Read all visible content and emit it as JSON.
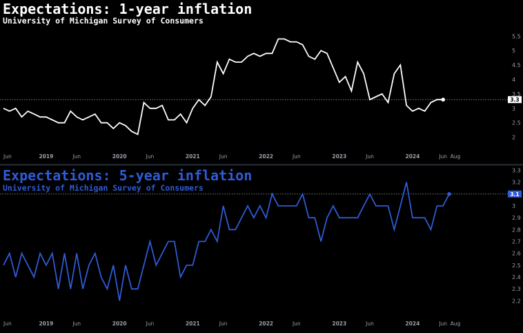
{
  "chart_data": [
    {
      "type": "line",
      "title": "Expectations: 1-year inflation",
      "subtitle": "University of Michigan Survey of Consumers",
      "color": "#ffffff",
      "ylim": [
        1.75,
        5.65
      ],
      "yticks": [
        "5.5",
        "5",
        "4.5",
        "4",
        "3.5",
        "3",
        "2.5",
        "2"
      ],
      "last_label": "3.3",
      "x_tick_labels": [
        "Jun",
        "2019",
        "Jun",
        "2020",
        "Jun",
        "2021",
        "Jun",
        "2022",
        "Jun",
        "2023",
        "Jun",
        "2024",
        "Jun",
        "Aug"
      ],
      "x_start": "2018-06",
      "values": [
        3.0,
        2.9,
        3.0,
        2.7,
        2.9,
        2.8,
        2.7,
        2.7,
        2.6,
        2.5,
        2.5,
        2.9,
        2.7,
        2.6,
        2.7,
        2.8,
        2.5,
        2.5,
        2.3,
        2.5,
        2.4,
        2.2,
        2.1,
        3.2,
        3.0,
        3.0,
        3.1,
        2.6,
        2.6,
        2.8,
        2.5,
        3.0,
        3.3,
        3.1,
        3.4,
        4.6,
        4.2,
        4.7,
        4.6,
        4.6,
        4.8,
        4.9,
        4.8,
        4.9,
        4.9,
        5.4,
        5.4,
        5.3,
        5.3,
        5.2,
        4.8,
        4.7,
        5.0,
        4.9,
        4.4,
        3.9,
        4.1,
        3.6,
        4.6,
        4.2,
        3.3,
        3.4,
        3.5,
        3.2,
        4.2,
        4.5,
        3.1,
        2.9,
        3.0,
        2.9,
        3.2,
        3.3,
        3.3
      ]
    },
    {
      "type": "line",
      "title": "Expectations: 5-year inflation",
      "subtitle": "University of Michigan Survey of Consumers",
      "color": "#2f5bd6",
      "ylim": [
        2.15,
        3.32
      ],
      "yticks": [
        "3.3",
        "3.2",
        "3.1",
        "3",
        "2.9",
        "2.8",
        "2.7",
        "2.6",
        "2.5",
        "2.4",
        "2.3",
        "2.2"
      ],
      "last_label": "3.1",
      "x_tick_labels": [
        "Jun",
        "2019",
        "Jun",
        "2020",
        "Jun",
        "2021",
        "Jun",
        "2022",
        "Jun",
        "2023",
        "Jun",
        "2024",
        "Jun",
        "Aug"
      ],
      "x_start": "2018-06",
      "values": [
        2.5,
        2.6,
        2.4,
        2.6,
        2.5,
        2.4,
        2.6,
        2.5,
        2.6,
        2.3,
        2.6,
        2.3,
        2.6,
        2.3,
        2.5,
        2.6,
        2.4,
        2.3,
        2.5,
        2.2,
        2.5,
        2.3,
        2.3,
        2.5,
        2.7,
        2.5,
        2.6,
        2.7,
        2.7,
        2.4,
        2.5,
        2.5,
        2.7,
        2.7,
        2.8,
        2.7,
        3.0,
        2.8,
        2.8,
        2.9,
        3.0,
        2.9,
        3.0,
        2.9,
        3.1,
        3.0,
        3.0,
        3.0,
        3.0,
        3.1,
        2.9,
        2.9,
        2.7,
        2.9,
        3.0,
        2.9,
        2.9,
        2.9,
        2.9,
        3.0,
        3.1,
        3.0,
        3.0,
        3.0,
        2.8,
        3.0,
        3.2,
        2.9,
        2.9,
        2.9,
        2.8,
        3.0,
        3.0,
        3.1
      ]
    }
  ]
}
